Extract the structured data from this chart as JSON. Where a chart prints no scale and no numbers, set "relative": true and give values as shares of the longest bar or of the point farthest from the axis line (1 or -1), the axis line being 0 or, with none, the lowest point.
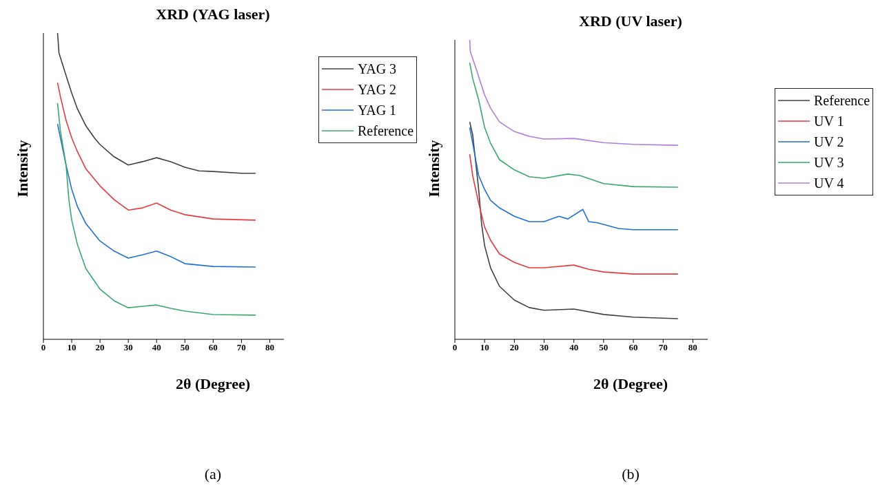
{
  "chart_data": [
    {
      "type": "line",
      "title": "XRD (YAG laser)",
      "xlabel": "2θ (Degree)",
      "ylabel": "Intensity",
      "relative": true,
      "xlim": [
        0,
        85
      ],
      "xticks": [
        0,
        10,
        20,
        30,
        40,
        50,
        60,
        70,
        80
      ],
      "tick_labels": "x",
      "legend": "top right",
      "annotations": [
        "(a)"
      ],
      "series": [
        {
          "name": "YAG 3",
          "color": "#404040",
          "x": [
            5,
            5.5,
            8,
            10,
            12,
            15,
            18,
            20,
            25,
            30,
            35,
            40,
            45,
            50,
            55,
            60,
            70,
            75
          ],
          "values": [
            1.0,
            0.935,
            0.861,
            0.804,
            0.753,
            0.697,
            0.658,
            0.636,
            0.596,
            0.569,
            0.58,
            0.593,
            0.58,
            0.562,
            0.55,
            0.548,
            0.542,
            0.542
          ]
        },
        {
          "name": "YAG 2",
          "color": "#e8383d",
          "x": [
            5,
            6,
            8,
            10,
            12,
            15,
            20,
            25,
            30,
            35,
            40,
            45,
            50,
            60,
            75
          ],
          "values": [
            0.838,
            0.793,
            0.715,
            0.658,
            0.613,
            0.557,
            0.501,
            0.456,
            0.422,
            0.429,
            0.445,
            0.422,
            0.407,
            0.393,
            0.389
          ]
        },
        {
          "name": "YAG 1",
          "color": "#1f6fdb",
          "x": [
            5,
            6,
            8,
            10,
            12,
            15,
            20,
            25,
            30,
            35,
            40,
            45,
            50,
            60,
            75
          ],
          "values": [
            0.703,
            0.658,
            0.569,
            0.49,
            0.434,
            0.378,
            0.321,
            0.288,
            0.265,
            0.276,
            0.288,
            0.27,
            0.247,
            0.238,
            0.236
          ]
        },
        {
          "name": "Reference",
          "color": "#3aa86b",
          "x": [
            5,
            6,
            8,
            9,
            10,
            12,
            15,
            20,
            25,
            30,
            35,
            40,
            45,
            50,
            60,
            75
          ],
          "values": [
            0.771,
            0.681,
            0.569,
            0.456,
            0.389,
            0.31,
            0.231,
            0.164,
            0.126,
            0.103,
            0.108,
            0.112,
            0.101,
            0.092,
            0.081,
            0.079
          ]
        }
      ]
    },
    {
      "type": "line",
      "title": "XRD (UV laser)",
      "xlabel": "2θ (Degree)",
      "ylabel": "Intensity",
      "relative": true,
      "xlim": [
        0,
        85
      ],
      "xticks": [
        0,
        10,
        20,
        30,
        40,
        50,
        60,
        70,
        80
      ],
      "tick_labels": "x",
      "legend": "right",
      "annotations": [
        "(b)"
      ],
      "series": [
        {
          "name": "Reference",
          "color": "#404040",
          "x": [
            5,
            6,
            8,
            9,
            10,
            12,
            15,
            20,
            25,
            30,
            40,
            50,
            60,
            75
          ],
          "values": [
            0.726,
            0.683,
            0.501,
            0.384,
            0.313,
            0.239,
            0.177,
            0.131,
            0.106,
            0.097,
            0.101,
            0.083,
            0.074,
            0.069
          ]
        },
        {
          "name": "UV 1",
          "color": "#e8383d",
          "x": [
            5,
            6,
            8,
            10,
            12,
            15,
            20,
            25,
            30,
            40,
            45,
            50,
            60,
            75
          ],
          "values": [
            0.618,
            0.547,
            0.455,
            0.375,
            0.331,
            0.285,
            0.257,
            0.239,
            0.239,
            0.248,
            0.234,
            0.225,
            0.218,
            0.218
          ]
        },
        {
          "name": "UV 2",
          "color": "#1f6fdb",
          "x": [
            5,
            6,
            8,
            10,
            12,
            15,
            20,
            25,
            30,
            35,
            38,
            43,
            45,
            48,
            55,
            60,
            75
          ],
          "values": [
            0.708,
            0.655,
            0.547,
            0.501,
            0.464,
            0.439,
            0.411,
            0.393,
            0.393,
            0.411,
            0.402,
            0.434,
            0.393,
            0.389,
            0.37,
            0.366,
            0.366
          ]
        },
        {
          "name": "UV 3",
          "color": "#3aa86b",
          "x": [
            5,
            6,
            8,
            10,
            12,
            15,
            20,
            25,
            30,
            38,
            42,
            50,
            60,
            75
          ],
          "values": [
            0.924,
            0.871,
            0.8,
            0.708,
            0.655,
            0.6,
            0.566,
            0.543,
            0.538,
            0.552,
            0.547,
            0.52,
            0.51,
            0.508
          ]
        },
        {
          "name": "UV 4",
          "color": "#b07be0",
          "x": [
            5,
            5.2,
            7,
            10,
            12,
            15,
            20,
            25,
            30,
            40,
            50,
            60,
            75
          ],
          "values": [
            1.0,
            0.961,
            0.908,
            0.816,
            0.772,
            0.726,
            0.694,
            0.678,
            0.669,
            0.671,
            0.657,
            0.651,
            0.648
          ]
        }
      ]
    }
  ]
}
